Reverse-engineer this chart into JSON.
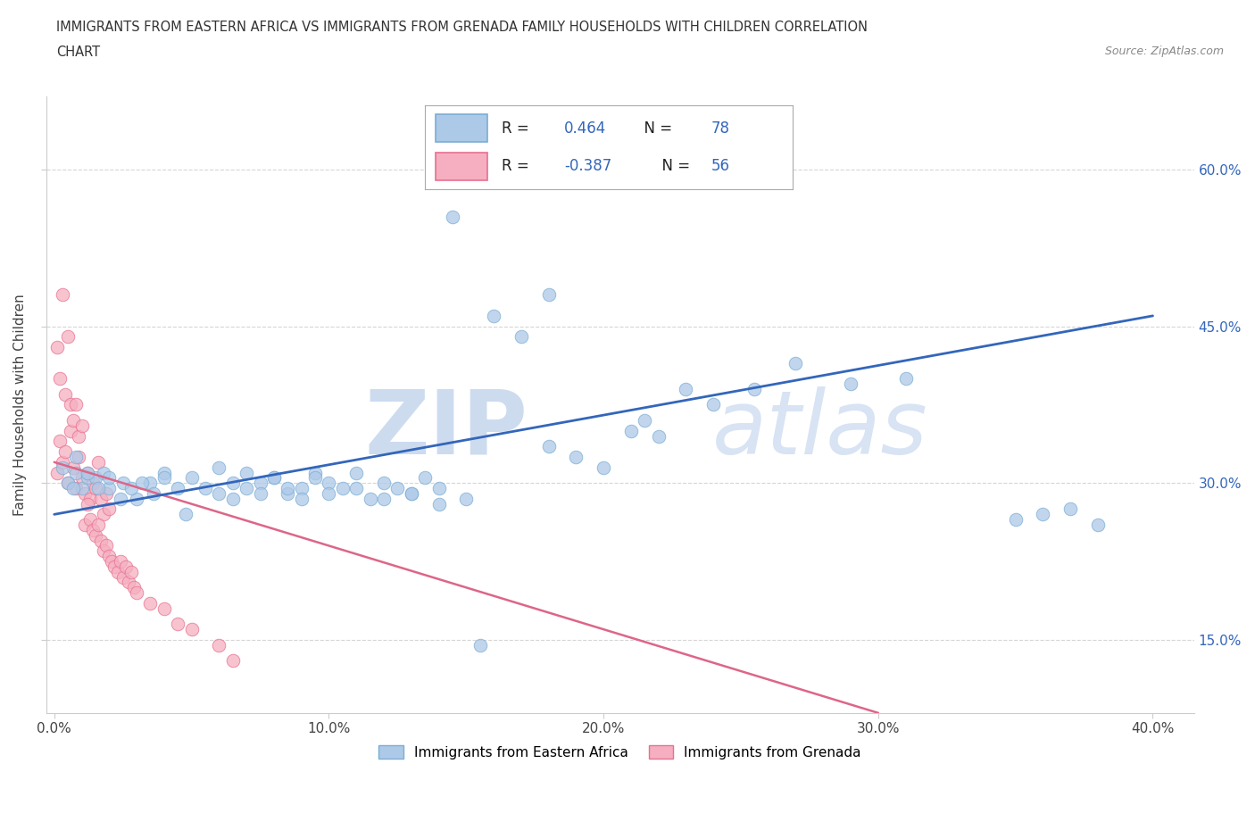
{
  "title_line1": "IMMIGRANTS FROM EASTERN AFRICA VS IMMIGRANTS FROM GRENADA FAMILY HOUSEHOLDS WITH CHILDREN CORRELATION",
  "title_line2": "CHART",
  "source": "Source: ZipAtlas.com",
  "ylabel": "Family Households with Children",
  "xlim": [
    -0.003,
    0.415
  ],
  "ylim": [
    0.08,
    0.67
  ],
  "yticks": [
    0.15,
    0.3,
    0.45,
    0.6
  ],
  "ytick_labels_right": [
    "15.0%",
    "30.0%",
    "45.0%",
    "60.0%"
  ],
  "xticks": [
    0.0,
    0.1,
    0.2,
    0.3,
    0.4
  ],
  "xtick_labels": [
    "0.0%",
    "10.0%",
    "20.0%",
    "30.0%",
    "40.0%"
  ],
  "blue_R": 0.464,
  "blue_N": 78,
  "pink_R": -0.387,
  "pink_N": 56,
  "blue_color": "#adc9e8",
  "blue_edge": "#7aadd4",
  "pink_color": "#f5afc0",
  "pink_edge": "#e87090",
  "blue_line_color": "#3366bb",
  "pink_line_color": "#dd6688",
  "grid_color": "#cccccc",
  "spine_color": "#cccccc",
  "blue_x": [
    0.005,
    0.008,
    0.01,
    0.012,
    0.003,
    0.007,
    0.015,
    0.018,
    0.02,
    0.025,
    0.03,
    0.035,
    0.04,
    0.045,
    0.05,
    0.055,
    0.06,
    0.065,
    0.07,
    0.075,
    0.08,
    0.085,
    0.09,
    0.095,
    0.1,
    0.11,
    0.12,
    0.13,
    0.14,
    0.15,
    0.06,
    0.065,
    0.07,
    0.075,
    0.08,
    0.085,
    0.09,
    0.095,
    0.1,
    0.105,
    0.11,
    0.115,
    0.12,
    0.125,
    0.13,
    0.135,
    0.14,
    0.008,
    0.012,
    0.016,
    0.02,
    0.024,
    0.028,
    0.032,
    0.036,
    0.04,
    0.18,
    0.19,
    0.2,
    0.21,
    0.215,
    0.22,
    0.23,
    0.24,
    0.18,
    0.16,
    0.17,
    0.27,
    0.35,
    0.36,
    0.37,
    0.38,
    0.155,
    0.255,
    0.29,
    0.31,
    0.145,
    0.048
  ],
  "blue_y": [
    0.3,
    0.31,
    0.295,
    0.305,
    0.315,
    0.295,
    0.305,
    0.31,
    0.295,
    0.3,
    0.285,
    0.3,
    0.31,
    0.295,
    0.305,
    0.295,
    0.29,
    0.285,
    0.295,
    0.3,
    0.305,
    0.29,
    0.295,
    0.31,
    0.3,
    0.295,
    0.285,
    0.29,
    0.295,
    0.285,
    0.315,
    0.3,
    0.31,
    0.29,
    0.305,
    0.295,
    0.285,
    0.305,
    0.29,
    0.295,
    0.31,
    0.285,
    0.3,
    0.295,
    0.29,
    0.305,
    0.28,
    0.325,
    0.31,
    0.295,
    0.305,
    0.285,
    0.295,
    0.3,
    0.29,
    0.305,
    0.335,
    0.325,
    0.315,
    0.35,
    0.36,
    0.345,
    0.39,
    0.375,
    0.48,
    0.46,
    0.44,
    0.415,
    0.265,
    0.27,
    0.275,
    0.26,
    0.145,
    0.39,
    0.395,
    0.4,
    0.555,
    0.27
  ],
  "pink_x": [
    0.001,
    0.002,
    0.003,
    0.004,
    0.005,
    0.006,
    0.007,
    0.008,
    0.009,
    0.01,
    0.011,
    0.012,
    0.013,
    0.014,
    0.015,
    0.016,
    0.017,
    0.018,
    0.019,
    0.02,
    0.001,
    0.002,
    0.003,
    0.004,
    0.005,
    0.006,
    0.007,
    0.008,
    0.009,
    0.01,
    0.011,
    0.012,
    0.013,
    0.014,
    0.015,
    0.016,
    0.017,
    0.018,
    0.019,
    0.02,
    0.021,
    0.022,
    0.023,
    0.024,
    0.025,
    0.026,
    0.027,
    0.028,
    0.029,
    0.03,
    0.035,
    0.04,
    0.045,
    0.05,
    0.06,
    0.065
  ],
  "pink_y": [
    0.31,
    0.34,
    0.32,
    0.33,
    0.3,
    0.35,
    0.315,
    0.295,
    0.325,
    0.305,
    0.29,
    0.31,
    0.285,
    0.3,
    0.295,
    0.32,
    0.285,
    0.27,
    0.29,
    0.275,
    0.43,
    0.4,
    0.48,
    0.385,
    0.44,
    0.375,
    0.36,
    0.375,
    0.345,
    0.355,
    0.26,
    0.28,
    0.265,
    0.255,
    0.25,
    0.26,
    0.245,
    0.235,
    0.24,
    0.23,
    0.225,
    0.22,
    0.215,
    0.225,
    0.21,
    0.22,
    0.205,
    0.215,
    0.2,
    0.195,
    0.185,
    0.18,
    0.165,
    0.16,
    0.145,
    0.13
  ],
  "blue_trend": [
    0.0,
    0.4
  ],
  "blue_trend_y": [
    0.27,
    0.46
  ],
  "pink_trend": [
    0.0,
    0.3
  ],
  "pink_trend_y": [
    0.32,
    0.08
  ]
}
